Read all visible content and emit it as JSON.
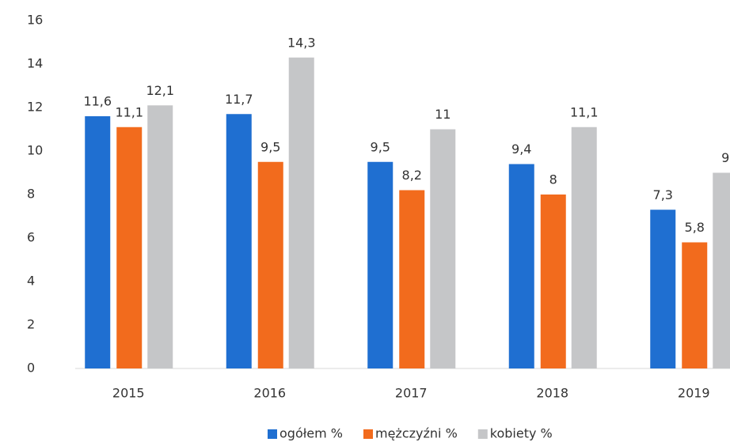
{
  "chart_data": {
    "type": "bar",
    "categories": [
      "2015",
      "2016",
      "2017",
      "2018",
      "2019"
    ],
    "series": [
      {
        "name": "ogółem %",
        "color": "#1f6fd1",
        "values": [
          11.6,
          11.7,
          9.5,
          9.4,
          7.3
        ],
        "value_labels": [
          "11,6",
          "11,7",
          "9,5",
          "9,4",
          "7,3"
        ]
      },
      {
        "name": "mężczyźni %",
        "color": "#f26b1d",
        "values": [
          11.1,
          9.5,
          8.2,
          8,
          5.8
        ],
        "value_labels": [
          "11,1",
          "9,5",
          "8,2",
          "8",
          "5,8"
        ]
      },
      {
        "name": "kobiety %",
        "color": "#c5c6c8",
        "values": [
          12.1,
          14.3,
          11,
          11.1,
          9
        ],
        "value_labels": [
          "12,1",
          "14,3",
          "11",
          "11,1",
          "9"
        ]
      }
    ],
    "ylim": [
      0,
      16
    ],
    "yticks": [
      0,
      2,
      4,
      6,
      8,
      10,
      12,
      14,
      16
    ],
    "grid": false,
    "legend": "bottom"
  }
}
